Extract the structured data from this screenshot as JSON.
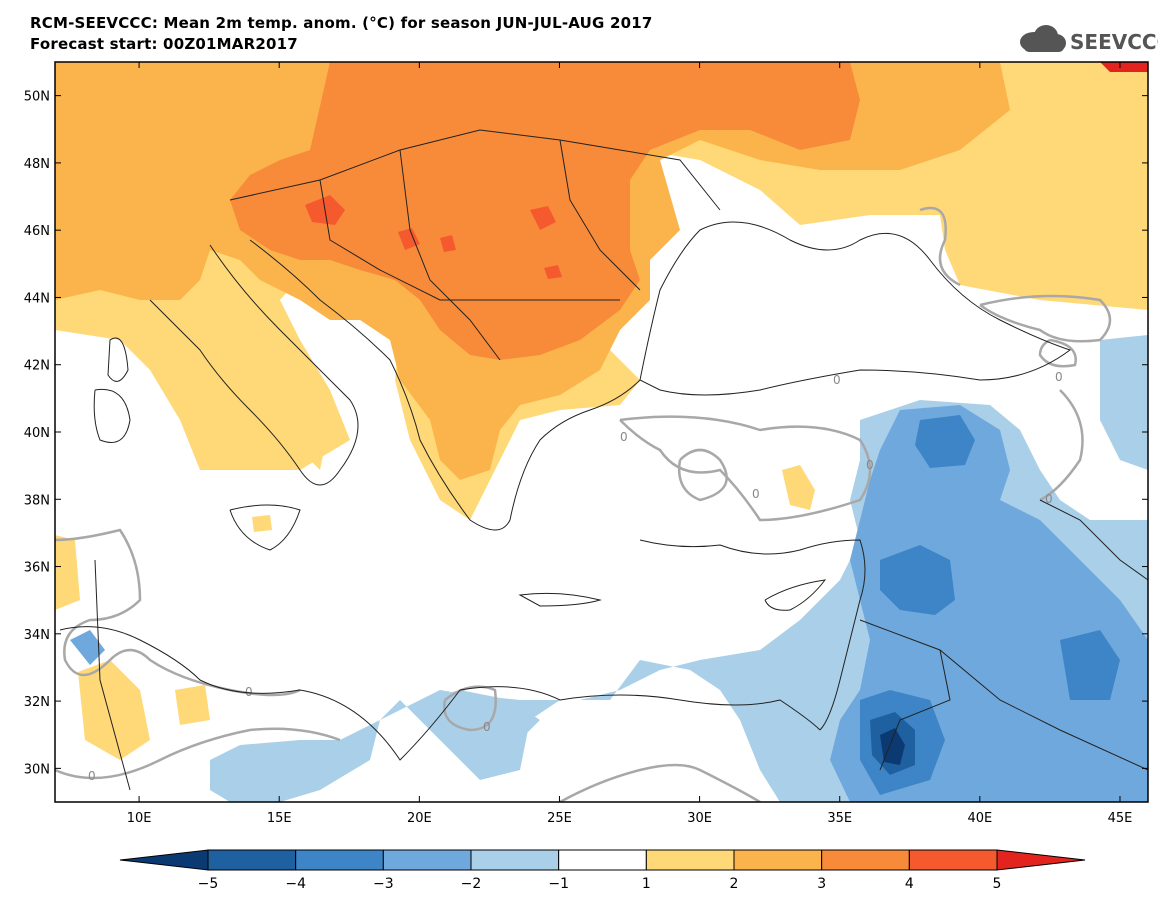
{
  "header": {
    "title_line1": "RCM-SEEVCCC: Mean 2m temp. anom. (°C) for season JUN-JUL-AUG 2017",
    "title_line2": "Forecast start: 00Z01MAR2017"
  },
  "logo": {
    "text": "SEEVCCC",
    "icon": "cloud-icon"
  },
  "map": {
    "lon_range": [
      7,
      46
    ],
    "lat_range": [
      29,
      51
    ],
    "x_ticks": [
      "10E",
      "15E",
      "20E",
      "25E",
      "30E",
      "35E",
      "40E",
      "45E"
    ],
    "x_tick_values": [
      10,
      15,
      20,
      25,
      30,
      35,
      40,
      45
    ],
    "y_ticks": [
      "50N",
      "48N",
      "46N",
      "44N",
      "42N",
      "40N",
      "38N",
      "36N",
      "34N",
      "32N",
      "30N"
    ],
    "y_tick_values": [
      50,
      48,
      46,
      44,
      42,
      40,
      38,
      36,
      34,
      32,
      30
    ],
    "zero_contour_label": "0"
  },
  "colorbar": {
    "labels": [
      "−5",
      "−4",
      "−3",
      "−2",
      "−1",
      "1",
      "2",
      "3",
      "4",
      "5"
    ],
    "colors": [
      "#0b3a73",
      "#1f60a0",
      "#3d85c6",
      "#6fa8dc",
      "#a9cfe9",
      "#ffffff",
      "#ffd878",
      "#fbb44c",
      "#f88b3a",
      "#f45a2e",
      "#e3241e"
    ]
  },
  "colors": {
    "anom_2_3": "#fbb44c",
    "anom_3_4": "#f88b3a",
    "anom_4_5": "#f45a2e",
    "anom_1_2": "#ffd878",
    "anom_m1_m2": "#a9cfe9",
    "anom_m2_m3": "#6fa8dc",
    "anom_m3_m4": "#3d85c6",
    "anom_m4_m5": "#1f60a0",
    "anom_m5": "#0b3a73",
    "contour": "#a8a8a8",
    "border": "#222222"
  }
}
